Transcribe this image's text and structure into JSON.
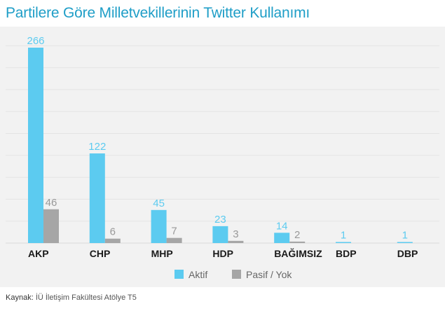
{
  "chart_data": {
    "type": "bar",
    "title": "Partilere Göre Milletvekillerinin Twitter Kullanımı",
    "categories": [
      "AKP",
      "CHP",
      "MHP",
      "HDP",
      "BAĞIMSIZ",
      "BDP",
      "DBP"
    ],
    "series": [
      {
        "name": "Aktif",
        "values": [
          266,
          122,
          45,
          23,
          14,
          1,
          1
        ],
        "color": "#5ccbf0",
        "label_color": "#5ccbf0"
      },
      {
        "name": "Pasif / Yok",
        "values": [
          46,
          6,
          7,
          3,
          2,
          null,
          null
        ],
        "color": "#a6a6a6",
        "label_color": "#999999"
      }
    ],
    "ylim": [
      0,
      266
    ],
    "grid": true,
    "legend_position": "bottom-center"
  },
  "source": {
    "label": "Kaynak:",
    "text": "İÜ İletişim Fakültesi Atölye T5"
  }
}
